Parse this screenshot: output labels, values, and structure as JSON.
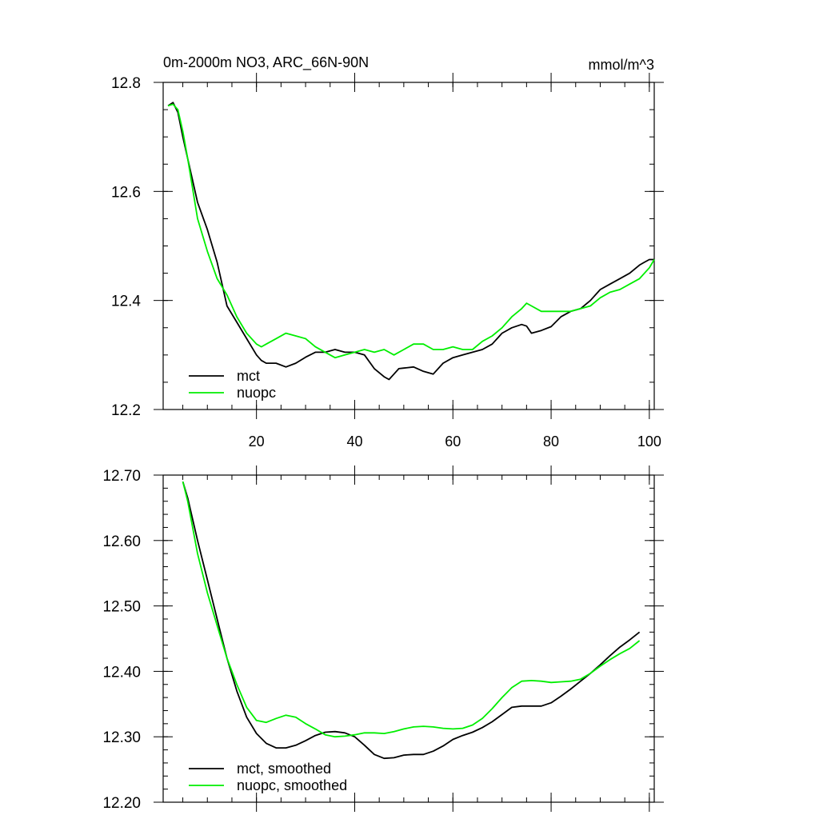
{
  "colors": {
    "mct": "#000000",
    "nuopc": "#00ee00",
    "axis": "#000000"
  },
  "chart_data": [
    {
      "type": "line",
      "title": "0m-2000m NO3, ARC_66N-90N",
      "units": "mmol/m^3",
      "xlim": [
        1,
        101
      ],
      "ylim": [
        12.2,
        12.8
      ],
      "yticks": [
        12.2,
        12.4,
        12.6,
        12.8
      ],
      "ytick_labels": [
        "12.2",
        "12.4",
        "12.6",
        "12.8"
      ],
      "yminor_step": 0.05,
      "xticks": [
        20,
        40,
        60,
        80,
        100
      ],
      "xtick_labels": [
        "20",
        "40",
        "60",
        "80",
        "100"
      ],
      "xminor_step": 5,
      "legend_position": "bottom-left",
      "series": [
        {
          "name": "mct",
          "color": "#000000",
          "x": [
            2,
            3,
            4,
            5,
            6,
            8,
            10,
            12,
            14,
            16,
            18,
            20,
            21,
            22,
            24,
            26,
            28,
            30,
            32,
            34,
            36,
            38,
            40,
            42,
            44,
            46,
            47,
            48,
            49,
            50,
            52,
            54,
            56,
            58,
            60,
            62,
            64,
            66,
            68,
            70,
            72,
            74,
            75,
            76,
            78,
            80,
            82,
            84,
            86,
            88,
            90,
            92,
            94,
            96,
            98,
            99,
            100,
            101
          ],
          "y": [
            12.757,
            12.763,
            12.745,
            12.7,
            12.66,
            12.58,
            12.53,
            12.47,
            12.39,
            12.36,
            12.33,
            12.3,
            12.29,
            12.285,
            12.285,
            12.278,
            12.285,
            12.296,
            12.305,
            12.305,
            12.31,
            12.305,
            12.305,
            12.3,
            12.275,
            12.26,
            12.255,
            12.265,
            12.275,
            12.276,
            12.278,
            12.27,
            12.265,
            12.285,
            12.295,
            12.3,
            12.305,
            12.31,
            12.32,
            12.34,
            12.35,
            12.356,
            12.353,
            12.34,
            12.345,
            12.352,
            12.37,
            12.38,
            12.385,
            12.4,
            12.42,
            12.43,
            12.44,
            12.45,
            12.465,
            12.47,
            12.475,
            12.475
          ]
        },
        {
          "name": "nuopc",
          "color": "#00ee00",
          "x": [
            2,
            3,
            4,
            5,
            6,
            8,
            10,
            12,
            14,
            16,
            18,
            20,
            21,
            22,
            24,
            26,
            28,
            30,
            32,
            34,
            36,
            38,
            40,
            42,
            44,
            46,
            48,
            50,
            52,
            54,
            56,
            58,
            60,
            62,
            64,
            66,
            68,
            70,
            72,
            74,
            75,
            76,
            78,
            80,
            82,
            84,
            86,
            88,
            90,
            92,
            94,
            96,
            98,
            100,
            101
          ],
          "y": [
            12.757,
            12.76,
            12.75,
            12.71,
            12.66,
            12.55,
            12.49,
            12.44,
            12.41,
            12.37,
            12.34,
            12.32,
            12.315,
            12.32,
            12.33,
            12.34,
            12.335,
            12.33,
            12.315,
            12.305,
            12.295,
            12.3,
            12.305,
            12.31,
            12.305,
            12.31,
            12.3,
            12.31,
            12.32,
            12.32,
            12.31,
            12.31,
            12.315,
            12.31,
            12.31,
            12.325,
            12.335,
            12.35,
            12.37,
            12.385,
            12.395,
            12.39,
            12.38,
            12.38,
            12.38,
            12.38,
            12.385,
            12.39,
            12.405,
            12.415,
            12.42,
            12.43,
            12.44,
            12.46,
            12.475
          ]
        }
      ]
    },
    {
      "type": "line",
      "title": "",
      "xlim": [
        1,
        101
      ],
      "ylim": [
        12.2,
        12.7
      ],
      "yticks": [
        12.2,
        12.3,
        12.4,
        12.5,
        12.6,
        12.7
      ],
      "ytick_labels": [
        "12.20",
        "12.30",
        "12.40",
        "12.50",
        "12.60",
        "12.70"
      ],
      "yminor_step": 0.02,
      "xticks": [
        20,
        40,
        60,
        80,
        100
      ],
      "xminor_step": 5,
      "legend_position": "bottom-left",
      "series": [
        {
          "name": "mct, smoothed",
          "color": "#000000",
          "x": [
            5,
            6,
            8,
            10,
            12,
            14,
            16,
            18,
            20,
            22,
            24,
            26,
            28,
            30,
            32,
            34,
            36,
            38,
            40,
            42,
            44,
            46,
            48,
            50,
            52,
            54,
            56,
            58,
            60,
            62,
            64,
            66,
            68,
            70,
            72,
            74,
            76,
            78,
            80,
            82,
            84,
            86,
            88,
            90,
            92,
            94,
            96,
            98
          ],
          "y": [
            12.69,
            12.665,
            12.6,
            12.54,
            12.48,
            12.42,
            12.37,
            12.33,
            12.305,
            12.29,
            12.283,
            12.283,
            12.287,
            12.294,
            12.302,
            12.307,
            12.308,
            12.306,
            12.3,
            12.287,
            12.273,
            12.267,
            12.268,
            12.272,
            12.273,
            12.273,
            12.278,
            12.286,
            12.296,
            12.302,
            12.307,
            12.314,
            12.323,
            12.334,
            12.345,
            12.347,
            12.347,
            12.347,
            12.352,
            12.362,
            12.373,
            12.385,
            12.397,
            12.41,
            12.424,
            12.437,
            12.448,
            12.46
          ]
        },
        {
          "name": "nuopc, smoothed",
          "color": "#00ee00",
          "x": [
            5,
            6,
            8,
            10,
            12,
            14,
            16,
            18,
            20,
            22,
            24,
            26,
            28,
            30,
            32,
            34,
            36,
            38,
            40,
            42,
            44,
            46,
            48,
            50,
            52,
            54,
            56,
            58,
            60,
            62,
            64,
            66,
            68,
            70,
            72,
            74,
            76,
            78,
            80,
            82,
            84,
            86,
            88,
            90,
            92,
            94,
            96,
            98
          ],
          "y": [
            12.69,
            12.66,
            12.58,
            12.52,
            12.47,
            12.42,
            12.38,
            12.345,
            12.325,
            12.322,
            12.328,
            12.333,
            12.33,
            12.32,
            12.312,
            12.303,
            12.3,
            12.301,
            12.303,
            12.306,
            12.306,
            12.305,
            12.308,
            12.312,
            12.315,
            12.316,
            12.315,
            12.313,
            12.312,
            12.313,
            12.318,
            12.328,
            12.343,
            12.36,
            12.375,
            12.385,
            12.386,
            12.385,
            12.383,
            12.384,
            12.385,
            12.388,
            12.397,
            12.408,
            12.418,
            12.427,
            12.435,
            12.447
          ]
        }
      ]
    }
  ]
}
